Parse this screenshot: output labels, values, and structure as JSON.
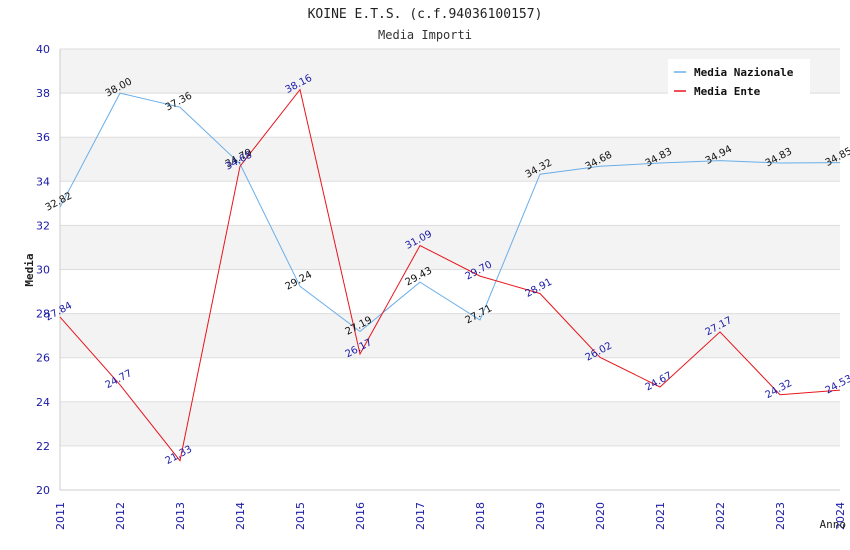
{
  "chart_data": {
    "type": "line",
    "title": "KOINE E.T.S. (c.f.94036100157)",
    "subtitle": "Media Importi",
    "xlabel": "Anno",
    "ylabel": "Media",
    "ylim": [
      20,
      40
    ],
    "ytick_step": 2,
    "x": [
      "2011",
      "2012",
      "2013",
      "2014",
      "2015",
      "2016",
      "2017",
      "2018",
      "2019",
      "2020",
      "2021",
      "2022",
      "2023",
      "2024"
    ],
    "legend_position": "top-right",
    "grid": true,
    "series": [
      {
        "name": "Media Nazionale",
        "color": "#6aaee8",
        "label_color": "#111111",
        "values": [
          32.82,
          38.0,
          37.36,
          34.79,
          29.24,
          27.19,
          29.43,
          27.71,
          34.32,
          34.68,
          34.83,
          34.94,
          34.83,
          34.85
        ],
        "labels": [
          "32.82",
          "38.00",
          "37.36",
          "34.79",
          "29.24",
          "27.19",
          "29.43",
          "27.71",
          "34.32",
          "34.68",
          "34.83",
          "34.94",
          "34.83",
          "34.85"
        ]
      },
      {
        "name": "Media Ente",
        "color": "#e8141c",
        "label_color": "#1a1aa6",
        "values": [
          27.84,
          24.77,
          21.33,
          34.68,
          38.16,
          26.17,
          31.09,
          29.7,
          28.91,
          26.02,
          24.67,
          27.17,
          24.32,
          24.53
        ],
        "labels": [
          "27.84",
          "24.77",
          "21.33",
          "34.68",
          "38.16",
          "26.17",
          "31.09",
          "29.70",
          "28.91",
          "26.02",
          "24.67",
          "27.17",
          "24.32",
          "24.53"
        ]
      }
    ]
  }
}
